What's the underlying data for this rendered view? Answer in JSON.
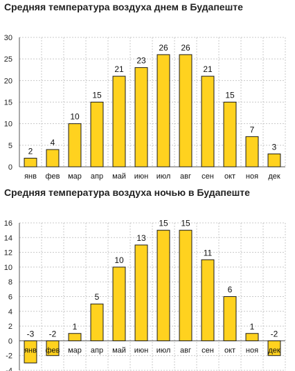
{
  "chart_data": [
    {
      "type": "bar",
      "title": "Средняя температура воздуха днем в Будапеште",
      "categories": [
        "янв",
        "фев",
        "мар",
        "апр",
        "май",
        "июн",
        "июл",
        "авг",
        "сен",
        "окт",
        "ноя",
        "дек"
      ],
      "values": [
        2,
        4,
        10,
        15,
        21,
        23,
        26,
        26,
        21,
        15,
        7,
        3
      ],
      "ylim": [
        0,
        30
      ],
      "yticks": [
        0,
        5,
        10,
        15,
        20,
        25,
        30
      ],
      "grid": true
    },
    {
      "type": "bar",
      "title": "Средняя температура воздуха ночью в Будапеште",
      "categories": [
        "янв",
        "фев",
        "мар",
        "апр",
        "май",
        "июн",
        "июл",
        "авг",
        "сен",
        "окт",
        "ноя",
        "дек"
      ],
      "values": [
        -3,
        -2,
        1,
        5,
        10,
        13,
        15,
        15,
        11,
        6,
        1,
        -2
      ],
      "ylim": [
        -4,
        16
      ],
      "yticks": [
        -4,
        -2,
        0,
        2,
        4,
        6,
        8,
        10,
        12,
        14,
        16
      ],
      "grid": true
    }
  ],
  "colors": {
    "bar_fill": "#FFD21F",
    "bar_stroke": "#1a1a1a",
    "grid": "#c8c8c8"
  }
}
